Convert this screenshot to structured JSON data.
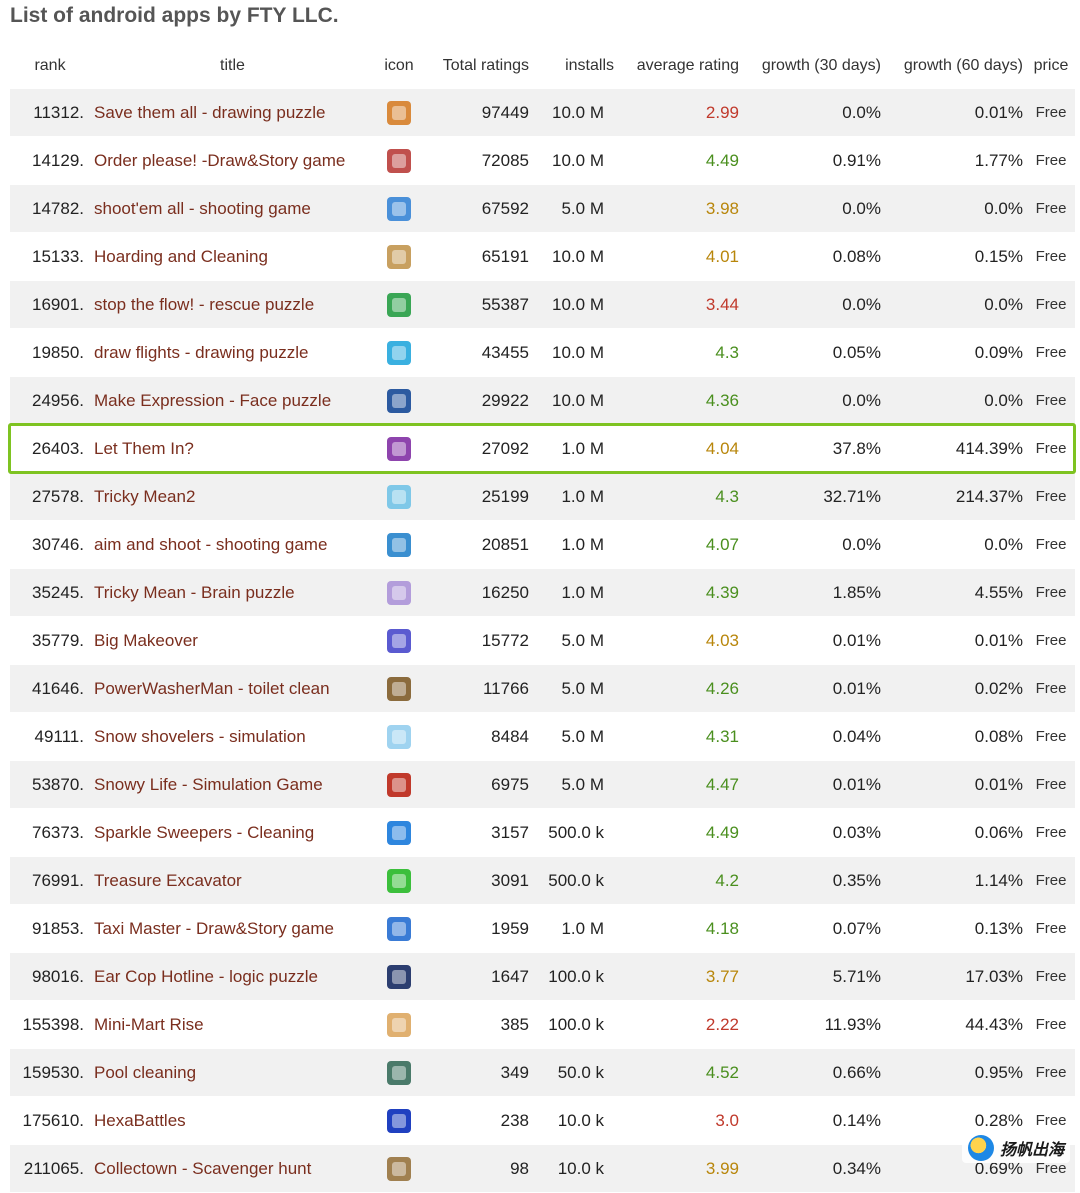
{
  "page": {
    "title": "List of android apps by FTY LLC."
  },
  "table": {
    "headers": {
      "rank": "rank",
      "title": "title",
      "icon": "icon",
      "total_ratings": "Total ratings",
      "installs": "installs",
      "average_rating": "average rating",
      "growth_30": "growth (30 days)",
      "growth_60": "growth (60 days)",
      "price": "price"
    },
    "rows": [
      {
        "rank": "11312.",
        "title": "Save them all - drawing puzzle",
        "ratings": "97449",
        "installs": "10.0 M",
        "avg": "2.99",
        "g30": "0.0%",
        "g60": "0.01%",
        "price": "Free",
        "rating_color": "red",
        "icon_color": "#d98a3c"
      },
      {
        "rank": "14129.",
        "title": "Order please! -Draw&Story game",
        "ratings": "72085",
        "installs": "10.0 M",
        "avg": "4.49",
        "g30": "0.91%",
        "g60": "1.77%",
        "price": "Free",
        "rating_color": "green",
        "icon_color": "#c0504d"
      },
      {
        "rank": "14782.",
        "title": "shoot'em all - shooting game",
        "ratings": "67592",
        "installs": "5.0 M",
        "avg": "3.98",
        "g30": "0.0%",
        "g60": "0.0%",
        "price": "Free",
        "rating_color": "orange",
        "icon_color": "#4a90d9"
      },
      {
        "rank": "15133.",
        "title": "Hoarding and Cleaning",
        "ratings": "65191",
        "installs": "10.0 M",
        "avg": "4.01",
        "g30": "0.08%",
        "g60": "0.15%",
        "price": "Free",
        "rating_color": "orange",
        "icon_color": "#c8a060"
      },
      {
        "rank": "16901.",
        "title": "stop the flow! - rescue puzzle",
        "ratings": "55387",
        "installs": "10.0 M",
        "avg": "3.44",
        "g30": "0.0%",
        "g60": "0.0%",
        "price": "Free",
        "rating_color": "red",
        "icon_color": "#3aa655"
      },
      {
        "rank": "19850.",
        "title": "draw flights - drawing puzzle",
        "ratings": "43455",
        "installs": "10.0 M",
        "avg": "4.3",
        "g30": "0.05%",
        "g60": "0.09%",
        "price": "Free",
        "rating_color": "green",
        "icon_color": "#3ab0e0"
      },
      {
        "rank": "24956.",
        "title": "Make Expression - Face puzzle",
        "ratings": "29922",
        "installs": "10.0 M",
        "avg": "4.36",
        "g30": "0.0%",
        "g60": "0.0%",
        "price": "Free",
        "rating_color": "green",
        "icon_color": "#2c5aa0"
      },
      {
        "rank": "26403.",
        "title": "Let Them In?",
        "ratings": "27092",
        "installs": "1.0 M",
        "avg": "4.04",
        "g30": "37.8%",
        "g60": "414.39%",
        "price": "Free",
        "rating_color": "orange",
        "icon_color": "#8e44ad"
      },
      {
        "rank": "27578.",
        "title": "Tricky Mean2",
        "ratings": "25199",
        "installs": "1.0 M",
        "avg": "4.3",
        "g30": "32.71%",
        "g60": "214.37%",
        "price": "Free",
        "rating_color": "green",
        "icon_color": "#7fc8e8"
      },
      {
        "rank": "30746.",
        "title": "aim and shoot - shooting game",
        "ratings": "20851",
        "installs": "1.0 M",
        "avg": "4.07",
        "g30": "0.0%",
        "g60": "0.0%",
        "price": "Free",
        "rating_color": "green",
        "icon_color": "#3a8fd0"
      },
      {
        "rank": "35245.",
        "title": "Tricky Mean - Brain puzzle",
        "ratings": "16250",
        "installs": "1.0 M",
        "avg": "4.39",
        "g30": "1.85%",
        "g60": "4.55%",
        "price": "Free",
        "rating_color": "green",
        "icon_color": "#b39ddb"
      },
      {
        "rank": "35779.",
        "title": "Big Makeover",
        "ratings": "15772",
        "installs": "5.0 M",
        "avg": "4.03",
        "g30": "0.01%",
        "g60": "0.01%",
        "price": "Free",
        "rating_color": "orange",
        "icon_color": "#5a5ad0"
      },
      {
        "rank": "41646.",
        "title": "PowerWasherMan - toilet clean",
        "ratings": "11766",
        "installs": "5.0 M",
        "avg": "4.26",
        "g30": "0.01%",
        "g60": "0.02%",
        "price": "Free",
        "rating_color": "green",
        "icon_color": "#8b6b3d"
      },
      {
        "rank": "49111.",
        "title": "Snow shovelers - simulation",
        "ratings": "8484",
        "installs": "5.0 M",
        "avg": "4.31",
        "g30": "0.04%",
        "g60": "0.08%",
        "price": "Free",
        "rating_color": "green",
        "icon_color": "#9fd3f0"
      },
      {
        "rank": "53870.",
        "title": "Snowy Life - Simulation Game",
        "ratings": "6975",
        "installs": "5.0 M",
        "avg": "4.47",
        "g30": "0.01%",
        "g60": "0.01%",
        "price": "Free",
        "rating_color": "green",
        "icon_color": "#c0392b"
      },
      {
        "rank": "76373.",
        "title": "Sparkle Sweepers - Cleaning",
        "ratings": "3157",
        "installs": "500.0 k",
        "avg": "4.49",
        "g30": "0.03%",
        "g60": "0.06%",
        "price": "Free",
        "rating_color": "green",
        "icon_color": "#2e86de"
      },
      {
        "rank": "76991.",
        "title": "Treasure Excavator",
        "ratings": "3091",
        "installs": "500.0 k",
        "avg": "4.2",
        "g30": "0.35%",
        "g60": "1.14%",
        "price": "Free",
        "rating_color": "green",
        "icon_color": "#3cbf3c"
      },
      {
        "rank": "91853.",
        "title": "Taxi Master - Draw&Story game",
        "ratings": "1959",
        "installs": "1.0 M",
        "avg": "4.18",
        "g30": "0.07%",
        "g60": "0.13%",
        "price": "Free",
        "rating_color": "green",
        "icon_color": "#3a7bd5"
      },
      {
        "rank": "98016.",
        "title": "Ear Cop Hotline - logic puzzle",
        "ratings": "1647",
        "installs": "100.0 k",
        "avg": "3.77",
        "g30": "5.71%",
        "g60": "17.03%",
        "price": "Free",
        "rating_color": "orange",
        "icon_color": "#2c3e70"
      },
      {
        "rank": "155398.",
        "title": "Mini-Mart Rise",
        "ratings": "385",
        "installs": "100.0 k",
        "avg": "2.22",
        "g30": "11.93%",
        "g60": "44.43%",
        "price": "Free",
        "rating_color": "red",
        "icon_color": "#e0b070"
      },
      {
        "rank": "159530.",
        "title": "Pool cleaning",
        "ratings": "349",
        "installs": "50.0 k",
        "avg": "4.52",
        "g30": "0.66%",
        "g60": "0.95%",
        "price": "Free",
        "rating_color": "green",
        "icon_color": "#4a7a6a"
      },
      {
        "rank": "175610.",
        "title": "HexaBattles",
        "ratings": "238",
        "installs": "10.0 k",
        "avg": "3.0",
        "g30": "0.14%",
        "g60": "0.28%",
        "price": "Free",
        "rating_color": "red",
        "icon_color": "#2040c0"
      },
      {
        "rank": "211065.",
        "title": "Collectown - Scavenger hunt",
        "ratings": "98",
        "installs": "10.0 k",
        "avg": "3.99",
        "g30": "0.34%",
        "g60": "0.69%",
        "price": "Free",
        "rating_color": "orange",
        "icon_color": "#a08050"
      }
    ]
  },
  "watermark": {
    "text": "扬帆出海"
  }
}
